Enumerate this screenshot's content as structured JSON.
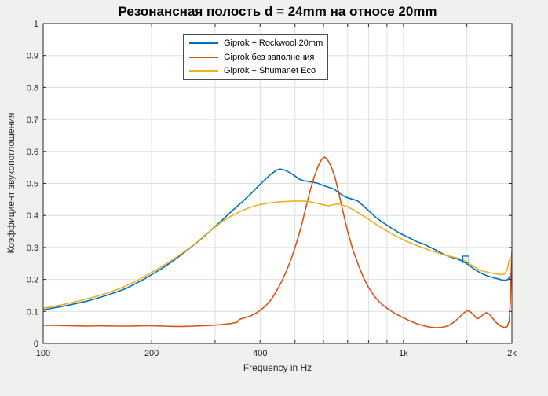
{
  "figure": {
    "background_color": "#f0f0ee",
    "plot_background": "#ffffff",
    "axis_color": "#262626",
    "grid_color": "#dedede",
    "tick_label_color": "#262626"
  },
  "chart_data": {
    "type": "line",
    "title": "Резонансная полость d = 24mm на относе 20mm",
    "xlabel": "Frequency in Hz",
    "ylabel": "Коэффициент звукопоглощения",
    "x_scale": "log",
    "xlim": [
      100,
      2000
    ],
    "ylim": [
      0,
      1
    ],
    "grid": true,
    "legend_position": "top-center-inside",
    "x_ticks": [
      {
        "value": 100,
        "label": "100"
      },
      {
        "value": 200,
        "label": "200"
      },
      {
        "value": 300,
        "label": ""
      },
      {
        "value": 400,
        "label": "400"
      },
      {
        "value": 500,
        "label": ""
      },
      {
        "value": 600,
        "label": ""
      },
      {
        "value": 700,
        "label": ""
      },
      {
        "value": 800,
        "label": ""
      },
      {
        "value": 900,
        "label": ""
      },
      {
        "value": 1000,
        "label": "1k"
      },
      {
        "value": 1500,
        "label": ""
      },
      {
        "value": 2000,
        "label": "2k"
      }
    ],
    "y_ticks": [
      {
        "value": 0,
        "label": "0"
      },
      {
        "value": 0.1,
        "label": "0.1"
      },
      {
        "value": 0.2,
        "label": "0.2"
      },
      {
        "value": 0.3,
        "label": "0.3"
      },
      {
        "value": 0.4,
        "label": "0.4"
      },
      {
        "value": 0.5,
        "label": "0.5"
      },
      {
        "value": 0.6,
        "label": "0.6"
      },
      {
        "value": 0.7,
        "label": "0.7"
      },
      {
        "value": 0.8,
        "label": "0.8"
      },
      {
        "value": 0.9,
        "label": "0.9"
      },
      {
        "value": 1,
        "label": "1"
      }
    ],
    "series": [
      {
        "name": "Giprok + Rockwool 20mm",
        "color": "#0072BD",
        "points": [
          [
            100,
            0.105
          ],
          [
            106,
            0.11
          ],
          [
            112,
            0.115
          ],
          [
            118,
            0.12
          ],
          [
            125,
            0.126
          ],
          [
            132,
            0.132
          ],
          [
            140,
            0.14
          ],
          [
            150,
            0.15
          ],
          [
            160,
            0.161
          ],
          [
            170,
            0.172
          ],
          [
            180,
            0.186
          ],
          [
            190,
            0.2
          ],
          [
            200,
            0.215
          ],
          [
            212,
            0.232
          ],
          [
            224,
            0.25
          ],
          [
            236,
            0.268
          ],
          [
            250,
            0.29
          ],
          [
            265,
            0.312
          ],
          [
            280,
            0.335
          ],
          [
            300,
            0.365
          ],
          [
            315,
            0.387
          ],
          [
            335,
            0.415
          ],
          [
            355,
            0.44
          ],
          [
            375,
            0.465
          ],
          [
            400,
            0.497
          ],
          [
            415,
            0.515
          ],
          [
            430,
            0.53
          ],
          [
            445,
            0.542
          ],
          [
            455,
            0.545
          ],
          [
            470,
            0.541
          ],
          [
            485,
            0.533
          ],
          [
            500,
            0.523
          ],
          [
            515,
            0.513
          ],
          [
            530,
            0.508
          ],
          [
            545,
            0.506
          ],
          [
            560,
            0.504
          ],
          [
            580,
            0.5
          ],
          [
            600,
            0.493
          ],
          [
            620,
            0.488
          ],
          [
            640,
            0.483
          ],
          [
            660,
            0.472
          ],
          [
            680,
            0.462
          ],
          [
            700,
            0.455
          ],
          [
            725,
            0.45
          ],
          [
            745,
            0.446
          ],
          [
            770,
            0.432
          ],
          [
            800,
            0.415
          ],
          [
            840,
            0.393
          ],
          [
            880,
            0.377
          ],
          [
            925,
            0.361
          ],
          [
            975,
            0.345
          ],
          [
            1030,
            0.332
          ],
          [
            1090,
            0.318
          ],
          [
            1140,
            0.31
          ],
          [
            1190,
            0.3
          ],
          [
            1240,
            0.29
          ],
          [
            1300,
            0.277
          ],
          [
            1350,
            0.27
          ],
          [
            1400,
            0.265
          ],
          [
            1460,
            0.257
          ],
          [
            1510,
            0.247
          ],
          [
            1560,
            0.235
          ],
          [
            1610,
            0.225
          ],
          [
            1660,
            0.217
          ],
          [
            1720,
            0.21
          ],
          [
            1770,
            0.206
          ],
          [
            1830,
            0.202
          ],
          [
            1880,
            0.198
          ],
          [
            1920,
            0.197
          ],
          [
            1950,
            0.2
          ],
          [
            1975,
            0.21
          ],
          [
            2000,
            0.222
          ]
        ]
      },
      {
        "name": "Giprok без заполнения",
        "color": "#D95319",
        "points": [
          [
            100,
            0.057
          ],
          [
            110,
            0.056
          ],
          [
            120,
            0.055
          ],
          [
            132,
            0.054
          ],
          [
            145,
            0.055
          ],
          [
            160,
            0.054
          ],
          [
            175,
            0.054
          ],
          [
            190,
            0.055
          ],
          [
            200,
            0.055
          ],
          [
            215,
            0.054
          ],
          [
            230,
            0.053
          ],
          [
            245,
            0.053
          ],
          [
            260,
            0.054
          ],
          [
            275,
            0.055
          ],
          [
            290,
            0.056
          ],
          [
            305,
            0.058
          ],
          [
            320,
            0.06
          ],
          [
            335,
            0.063
          ],
          [
            345,
            0.066
          ],
          [
            350,
            0.075
          ],
          [
            360,
            0.079
          ],
          [
            375,
            0.085
          ],
          [
            390,
            0.095
          ],
          [
            400,
            0.103
          ],
          [
            415,
            0.118
          ],
          [
            430,
            0.138
          ],
          [
            445,
            0.165
          ],
          [
            460,
            0.195
          ],
          [
            475,
            0.23
          ],
          [
            490,
            0.27
          ],
          [
            505,
            0.315
          ],
          [
            520,
            0.365
          ],
          [
            535,
            0.42
          ],
          [
            550,
            0.475
          ],
          [
            565,
            0.52
          ],
          [
            580,
            0.555
          ],
          [
            595,
            0.578
          ],
          [
            605,
            0.582
          ],
          [
            615,
            0.575
          ],
          [
            630,
            0.553
          ],
          [
            645,
            0.52
          ],
          [
            660,
            0.475
          ],
          [
            680,
            0.41
          ],
          [
            700,
            0.35
          ],
          [
            725,
            0.29
          ],
          [
            750,
            0.245
          ],
          [
            775,
            0.205
          ],
          [
            800,
            0.175
          ],
          [
            830,
            0.148
          ],
          [
            860,
            0.128
          ],
          [
            900,
            0.11
          ],
          [
            940,
            0.096
          ],
          [
            980,
            0.085
          ],
          [
            1030,
            0.073
          ],
          [
            1080,
            0.063
          ],
          [
            1130,
            0.056
          ],
          [
            1180,
            0.051
          ],
          [
            1230,
            0.049
          ],
          [
            1280,
            0.05
          ],
          [
            1330,
            0.055
          ],
          [
            1380,
            0.066
          ],
          [
            1430,
            0.082
          ],
          [
            1470,
            0.095
          ],
          [
            1500,
            0.102
          ],
          [
            1530,
            0.1
          ],
          [
            1570,
            0.088
          ],
          [
            1600,
            0.077
          ],
          [
            1630,
            0.08
          ],
          [
            1670,
            0.092
          ],
          [
            1700,
            0.096
          ],
          [
            1730,
            0.092
          ],
          [
            1770,
            0.078
          ],
          [
            1810,
            0.065
          ],
          [
            1850,
            0.056
          ],
          [
            1900,
            0.05
          ],
          [
            1940,
            0.052
          ],
          [
            1965,
            0.07
          ],
          [
            1980,
            0.13
          ],
          [
            1995,
            0.25
          ],
          [
            2000,
            0.29
          ]
        ]
      },
      {
        "name": "Giprok + Shumanet Eco",
        "color": "#EDB120",
        "points": [
          [
            100,
            0.11
          ],
          [
            106,
            0.115
          ],
          [
            112,
            0.12
          ],
          [
            118,
            0.126
          ],
          [
            125,
            0.132
          ],
          [
            132,
            0.139
          ],
          [
            140,
            0.147
          ],
          [
            150,
            0.157
          ],
          [
            160,
            0.168
          ],
          [
            170,
            0.18
          ],
          [
            180,
            0.193
          ],
          [
            190,
            0.207
          ],
          [
            200,
            0.222
          ],
          [
            212,
            0.238
          ],
          [
            224,
            0.255
          ],
          [
            236,
            0.272
          ],
          [
            250,
            0.292
          ],
          [
            265,
            0.313
          ],
          [
            280,
            0.337
          ],
          [
            300,
            0.363
          ],
          [
            315,
            0.382
          ],
          [
            335,
            0.4
          ],
          [
            355,
            0.414
          ],
          [
            375,
            0.425
          ],
          [
            400,
            0.434
          ],
          [
            420,
            0.438
          ],
          [
            440,
            0.441
          ],
          [
            460,
            0.443
          ],
          [
            480,
            0.444
          ],
          [
            500,
            0.445
          ],
          [
            520,
            0.445
          ],
          [
            540,
            0.444
          ],
          [
            560,
            0.441
          ],
          [
            580,
            0.437
          ],
          [
            600,
            0.433
          ],
          [
            620,
            0.43
          ],
          [
            640,
            0.434
          ],
          [
            660,
            0.436
          ],
          [
            680,
            0.432
          ],
          [
            700,
            0.427
          ],
          [
            725,
            0.418
          ],
          [
            745,
            0.41
          ],
          [
            770,
            0.4
          ],
          [
            800,
            0.388
          ],
          [
            840,
            0.372
          ],
          [
            880,
            0.358
          ],
          [
            925,
            0.344
          ],
          [
            975,
            0.33
          ],
          [
            1030,
            0.317
          ],
          [
            1090,
            0.306
          ],
          [
            1140,
            0.298
          ],
          [
            1190,
            0.29
          ],
          [
            1240,
            0.284
          ],
          [
            1300,
            0.276
          ],
          [
            1350,
            0.272
          ],
          [
            1400,
            0.268
          ],
          [
            1460,
            0.262
          ],
          [
            1510,
            0.252
          ],
          [
            1560,
            0.242
          ],
          [
            1610,
            0.232
          ],
          [
            1660,
            0.226
          ],
          [
            1720,
            0.222
          ],
          [
            1770,
            0.219
          ],
          [
            1830,
            0.216
          ],
          [
            1880,
            0.215
          ],
          [
            1910,
            0.217
          ],
          [
            1940,
            0.23
          ],
          [
            1965,
            0.26
          ],
          [
            1985,
            0.268
          ],
          [
            2000,
            0.262
          ]
        ]
      }
    ],
    "selection_marker": {
      "series": "Giprok + Rockwool 20mm",
      "x": 1490,
      "y": 0.263,
      "shape": "hollow-square",
      "color": "#0072BD"
    }
  }
}
